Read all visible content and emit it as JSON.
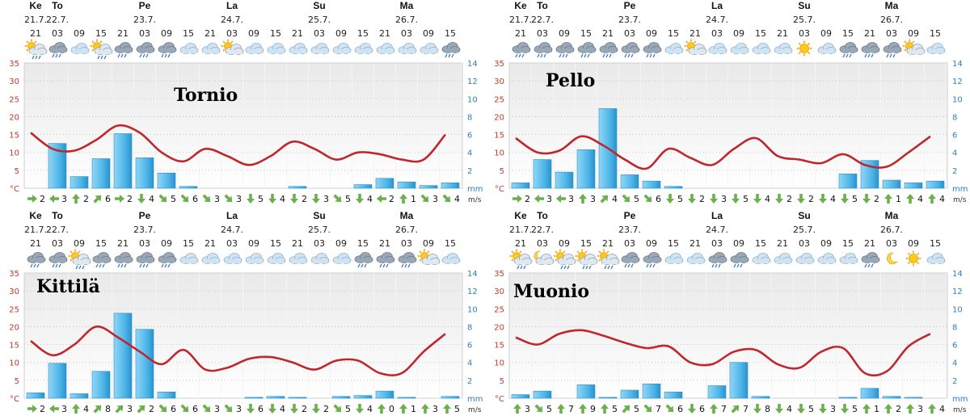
{
  "chart_data": [
    {
      "type": "bar",
      "title": "Tornio",
      "days": [
        {
          "name": "Ke",
          "date": "21.7.",
          "slot": 0
        },
        {
          "name": "To",
          "date": "22.7.",
          "slot": 1
        },
        {
          "name": "Pe",
          "date": "23.7.",
          "slot": 5
        },
        {
          "name": "La",
          "date": "24.7.",
          "slot": 9
        },
        {
          "name": "Su",
          "date": "25.7.",
          "slot": 13
        },
        {
          "name": "Ma",
          "date": "26.7.",
          "slot": 17
        }
      ],
      "hours": [
        "21",
        "03",
        "09",
        "15",
        "21",
        "03",
        "09",
        "15",
        "21",
        "03",
        "09",
        "15",
        "21",
        "03",
        "09",
        "15",
        "21",
        "03",
        "09",
        "15"
      ],
      "icons": [
        "partly-cloudy-rain",
        "rain-cloud",
        "cloud",
        "partly-cloudy-rain",
        "rain-cloud",
        "rain-cloud",
        "rain-cloud",
        "cloud",
        "cloud",
        "partly-cloudy",
        "cloud",
        "cloud",
        "cloud",
        "cloud",
        "cloud",
        "cloud",
        "cloud",
        "cloud",
        "cloud",
        "rain-cloud"
      ],
      "temperature": [
        15.5,
        11,
        10.5,
        13.5,
        17.5,
        15.5,
        10,
        7.5,
        11,
        9,
        6.5,
        9,
        13,
        11,
        8,
        10,
        9.5,
        8,
        8,
        15
      ],
      "precipitation_mm": [
        0,
        5,
        1.3,
        3.3,
        6.1,
        3.4,
        1.7,
        0.2,
        0,
        0,
        0,
        0,
        0.2,
        0,
        0,
        0.4,
        1.1,
        0.7,
        0.3,
        0.6
      ],
      "wind_ms": [
        2,
        3,
        2,
        6,
        2,
        4,
        5,
        6,
        3,
        3,
        5,
        4,
        2,
        3,
        5,
        4,
        2,
        1,
        3,
        4
      ],
      "wind_dir": [
        "e",
        "w",
        "n",
        "ne",
        "e",
        "s",
        "se",
        "se",
        "se",
        "se",
        "s",
        "s",
        "s",
        "s",
        "se",
        "s",
        "w",
        "n",
        "se",
        "se"
      ]
    },
    {
      "type": "bar",
      "title": "Pello",
      "days": [
        {
          "name": "Ke",
          "date": "21.7.",
          "slot": 0
        },
        {
          "name": "To",
          "date": "22.7.",
          "slot": 1
        },
        {
          "name": "Pe",
          "date": "23.7.",
          "slot": 5
        },
        {
          "name": "La",
          "date": "24.7.",
          "slot": 9
        },
        {
          "name": "Su",
          "date": "25.7.",
          "slot": 13
        },
        {
          "name": "Ma",
          "date": "26.7.",
          "slot": 17
        }
      ],
      "hours": [
        "21",
        "03",
        "09",
        "15",
        "21",
        "03",
        "09",
        "15",
        "21",
        "03",
        "09",
        "15",
        "21",
        "03",
        "09",
        "15",
        "21",
        "03",
        "09",
        "15"
      ],
      "icons": [
        "rain-cloud",
        "rain-cloud",
        "rain-cloud",
        "rain-cloud",
        "rain-cloud",
        "rain-cloud",
        "rain-cloud",
        "cloud",
        "partly-cloudy",
        "cloud",
        "cloud",
        "cloud",
        "cloud",
        "sun",
        "cloud",
        "rain-cloud",
        "rain-cloud",
        "rain-cloud",
        "partly-cloudy",
        "cloud"
      ],
      "temperature": [
        14,
        10,
        10.5,
        14.5,
        12,
        8,
        5.5,
        11,
        8.5,
        6.5,
        11,
        14,
        9,
        8,
        7,
        9.5,
        6.5,
        6,
        10,
        14.5
      ],
      "precipitation_mm": [
        0.6,
        3.2,
        1.8,
        4.3,
        8.9,
        1.5,
        0.8,
        0.2,
        0,
        0,
        0,
        0,
        0,
        0,
        0,
        1.6,
        3.1,
        0.9,
        0.6,
        0.8
      ],
      "wind_ms": [
        2,
        3,
        3,
        3,
        4,
        5,
        6,
        5,
        2,
        3,
        5,
        4,
        2,
        2,
        4,
        5,
        2,
        1,
        4,
        4
      ],
      "wind_dir": [
        "e",
        "w",
        "w",
        "n",
        "ne",
        "se",
        "se",
        "s",
        "s",
        "s",
        "s",
        "s",
        "s",
        "s",
        "s",
        "s",
        "s",
        "n",
        "n",
        "n"
      ]
    },
    {
      "type": "bar",
      "title": "Kittilä",
      "days": [
        {
          "name": "Ke",
          "date": "21.7.",
          "slot": 0
        },
        {
          "name": "To",
          "date": "22.7.",
          "slot": 1
        },
        {
          "name": "Pe",
          "date": "23.7.",
          "slot": 5
        },
        {
          "name": "La",
          "date": "24.7.",
          "slot": 9
        },
        {
          "name": "Su",
          "date": "25.7.",
          "slot": 13
        },
        {
          "name": "Ma",
          "date": "26.7.",
          "slot": 17
        }
      ],
      "hours": [
        "21",
        "03",
        "09",
        "15",
        "21",
        "03",
        "09",
        "15",
        "21",
        "03",
        "09",
        "15",
        "21",
        "03",
        "09",
        "15",
        "21",
        "03",
        "09",
        "15"
      ],
      "icons": [
        "rain-cloud",
        "rain-cloud",
        "partly-cloudy-rain",
        "rain-cloud",
        "rain-cloud",
        "rain-cloud",
        "rain-cloud",
        "cloud",
        "cloud",
        "cloud",
        "cloud",
        "cloud",
        "cloud",
        "cloud",
        "cloud",
        "rain-cloud",
        "rain-cloud",
        "rain-cloud",
        "partly-cloudy",
        "cloud"
      ],
      "temperature": [
        16,
        12,
        15,
        20,
        17,
        13,
        9.5,
        13.5,
        8,
        8.5,
        11,
        11.5,
        10,
        8,
        10.5,
        10.5,
        7,
        7,
        13,
        18
      ],
      "precipitation_mm": [
        0.6,
        3.9,
        0.5,
        3,
        9.5,
        7.7,
        0.7,
        0,
        0,
        0,
        0.1,
        0.2,
        0.1,
        0,
        0.2,
        0.3,
        0.8,
        0.1,
        0,
        0.2
      ],
      "wind_ms": [
        2,
        3,
        4,
        8,
        3,
        2,
        6,
        6,
        3,
        3,
        6,
        4,
        2,
        2,
        5,
        4,
        0,
        1,
        3,
        5
      ],
      "wind_dir": [
        "e",
        "w",
        "n",
        "ne",
        "ne",
        "ne",
        "se",
        "se",
        "se",
        "se",
        "s",
        "s",
        "s",
        "s",
        "se",
        "s",
        "n",
        "n",
        "n",
        "n"
      ]
    },
    {
      "type": "bar",
      "title": "Muonio",
      "days": [
        {
          "name": "Ke",
          "date": "21.7.",
          "slot": 0
        },
        {
          "name": "To",
          "date": "22.7.",
          "slot": 1
        },
        {
          "name": "Pe",
          "date": "23.7.",
          "slot": 5
        },
        {
          "name": "La",
          "date": "24.7.",
          "slot": 9
        },
        {
          "name": "Su",
          "date": "25.7.",
          "slot": 13
        },
        {
          "name": "Ma",
          "date": "26.7.",
          "slot": 17
        }
      ],
      "hours": [
        "21",
        "03",
        "09",
        "15",
        "21",
        "03",
        "09",
        "15",
        "21",
        "03",
        "09",
        "15",
        "21",
        "03",
        "09",
        "15",
        "21",
        "03",
        "09",
        "15"
      ],
      "icons": [
        "partly-cloudy-rain",
        "partly-cloudy-night",
        "partly-cloudy-rain",
        "partly-cloudy-rain",
        "partly-cloudy-rain",
        "rain-cloud",
        "rain-cloud",
        "cloud",
        "cloud",
        "rain-cloud",
        "rain-cloud",
        "cloud",
        "cloud",
        "cloud",
        "cloud",
        "cloud",
        "rain-cloud",
        "moon",
        "sun",
        "cloud"
      ],
      "temperature": [
        17,
        15,
        18,
        19,
        17.5,
        15.5,
        14,
        14.5,
        10,
        9.5,
        13,
        13.5,
        9.5,
        8.5,
        13,
        14,
        7,
        7.5,
        14.5,
        18
      ],
      "precipitation_mm": [
        0.4,
        0.8,
        0,
        1.5,
        0.1,
        0.9,
        1.6,
        0.7,
        0,
        1.4,
        4,
        0.2,
        0,
        0,
        0,
        0.1,
        1.1,
        0.2,
        0.1,
        0
      ],
      "wind_ms": [
        3,
        5,
        7,
        9,
        5,
        5,
        7,
        6,
        6,
        7,
        7,
        8,
        4,
        5,
        3,
        5,
        1,
        2,
        3,
        4
      ],
      "wind_dir": [
        "n",
        "se",
        "n",
        "n",
        "n",
        "ne",
        "se",
        "se",
        "s",
        "n",
        "ne",
        "s",
        "s",
        "s",
        "s",
        "s",
        "n",
        "n",
        "n",
        "n"
      ]
    }
  ],
  "axis": {
    "temp_ticks": [
      "35",
      "30",
      "25",
      "20",
      "15",
      "10",
      "5",
      "°C"
    ],
    "mm_ticks": [
      "14",
      "12",
      "10",
      "8",
      "6",
      "4",
      "2",
      "mm"
    ],
    "temp_range": [
      0,
      35
    ],
    "mm_range": [
      0,
      14
    ],
    "wind_unit": "m/s"
  },
  "colors": {
    "temp_line": "#c0272d",
    "bar": "#4fb6e8",
    "wind_arrow": "#6ab04c",
    "left_axis": "#c0392b",
    "right_axis": "#2f7fc1"
  }
}
